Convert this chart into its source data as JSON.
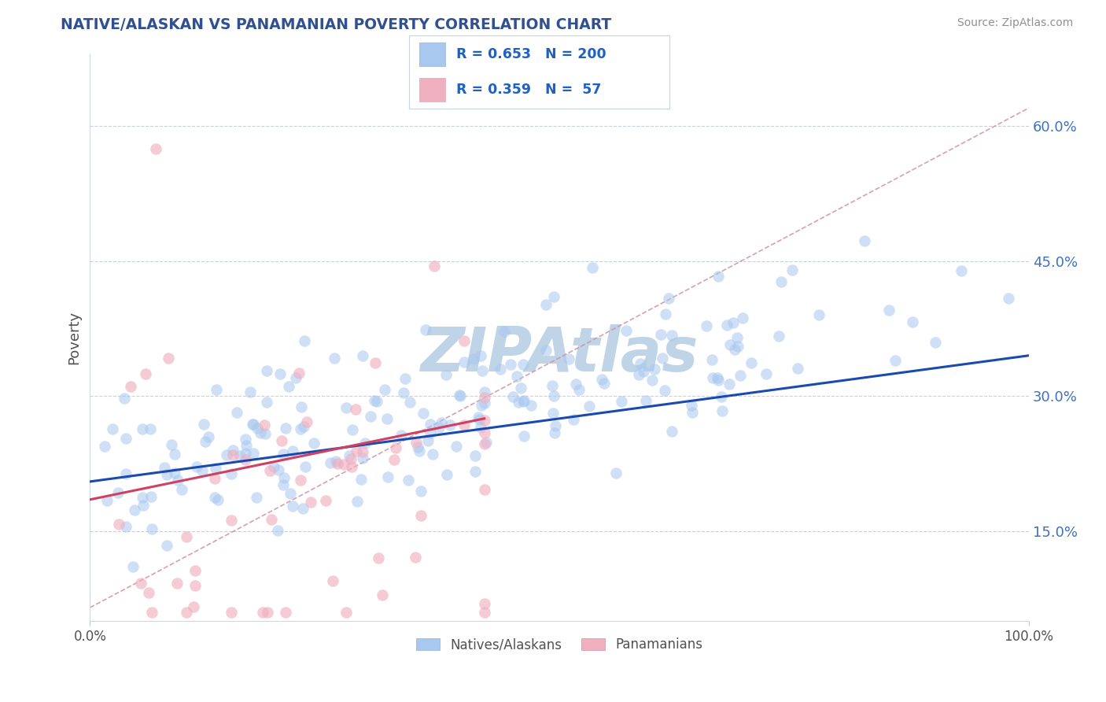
{
  "title": "NATIVE/ALASKAN VS PANAMANIAN POVERTY CORRELATION CHART",
  "source": "Source: ZipAtlas.com",
  "ylabel": "Poverty",
  "yticks": [
    0.15,
    0.3,
    0.45,
    0.6
  ],
  "ytick_labels": [
    "15.0%",
    "30.0%",
    "45.0%",
    "60.0%"
  ],
  "xlim": [
    0.0,
    1.0
  ],
  "ylim": [
    0.05,
    0.68
  ],
  "blue_R": 0.653,
  "blue_N": 200,
  "pink_R": 0.359,
  "pink_N": 57,
  "blue_color": "#a8c8f0",
  "pink_color": "#f0b0c0",
  "blue_line_color": "#1a4ab0",
  "pink_line_color": "#d04060",
  "trend_line_color": "#d090a0",
  "watermark": "ZIPAtlas",
  "watermark_color": "#c0d4e8",
  "legend_label_blue": "Natives/Alaskans",
  "legend_label_pink": "Panamanians",
  "background_color": "#ffffff",
  "grid_color": "#c8d0dc",
  "title_color": "#305090",
  "source_color": "#909090",
  "legend_box_color": "#e8eef8",
  "legend_text_color": "#2060c0",
  "blue_line_y0": 0.205,
  "blue_line_y1": 0.345,
  "pink_line_x0": 0.0,
  "pink_line_y0": 0.185,
  "pink_line_x1": 0.42,
  "pink_line_y1": 0.275,
  "trend_line_y0": 0.065,
  "trend_line_y1": 0.62
}
